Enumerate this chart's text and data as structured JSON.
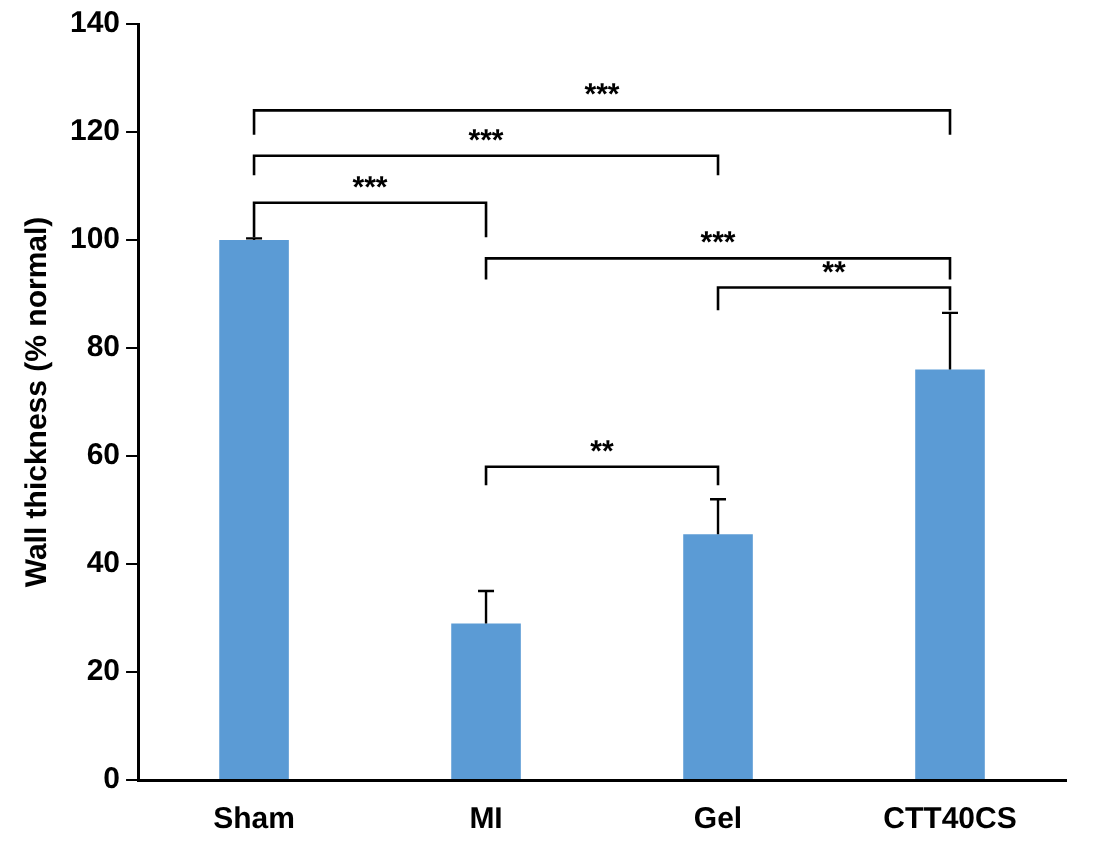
{
  "chart_data": {
    "type": "bar",
    "ylabel": "Wall thickness (% normal)",
    "categories": [
      "Sham",
      "MI",
      "Gel",
      "CTT40CS"
    ],
    "values": [
      100,
      29,
      45.5,
      76
    ],
    "errors": [
      [
        100,
        100.3
      ],
      [
        29,
        35
      ],
      [
        45.5,
        52
      ],
      [
        76,
        86.5
      ]
    ],
    "color": "#5b9bd5",
    "ylim": [
      0,
      140
    ],
    "yticks": [
      0,
      20,
      40,
      60,
      80,
      100,
      120,
      140
    ],
    "annotations": [
      "***",
      "***",
      "***",
      "***",
      "**",
      "**"
    ]
  }
}
